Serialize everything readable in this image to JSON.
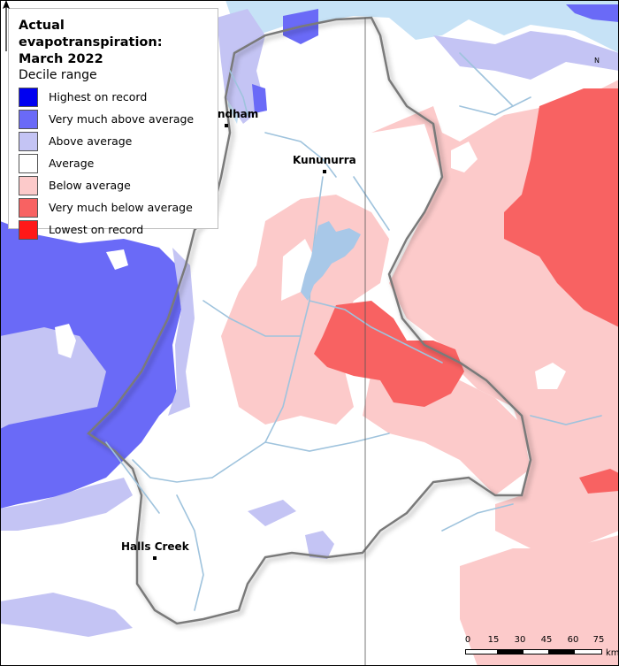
{
  "legend": {
    "title_line1": "Actual evapotranspiration:",
    "title_line2": "March 2022",
    "subtitle": "Decile range",
    "items": [
      {
        "label": "Highest on record",
        "color": "#0000f0"
      },
      {
        "label": "Very much above average",
        "color": "#6a6af7"
      },
      {
        "label": "Above average",
        "color": "#c4c4f4"
      },
      {
        "label": "Average",
        "color": "#ffffff"
      },
      {
        "label": "Below average",
        "color": "#fccaca"
      },
      {
        "label": "Very much below average",
        "color": "#f86262"
      },
      {
        "label": "Lowest on record",
        "color": "#ff1818"
      }
    ]
  },
  "towns": {
    "wyndham": "ndham",
    "kununurra": "Kununurra",
    "halls_creek": "Halls Creek"
  },
  "north_arrow": {
    "letter": "N"
  },
  "scale_bar": {
    "ticks": [
      "0",
      "15",
      "30",
      "45",
      "60",
      "75"
    ],
    "unit": "km"
  },
  "colors": {
    "sea": "#c6e2f6",
    "river": "#9fc3dd",
    "boundary": "#7a7a7a"
  }
}
